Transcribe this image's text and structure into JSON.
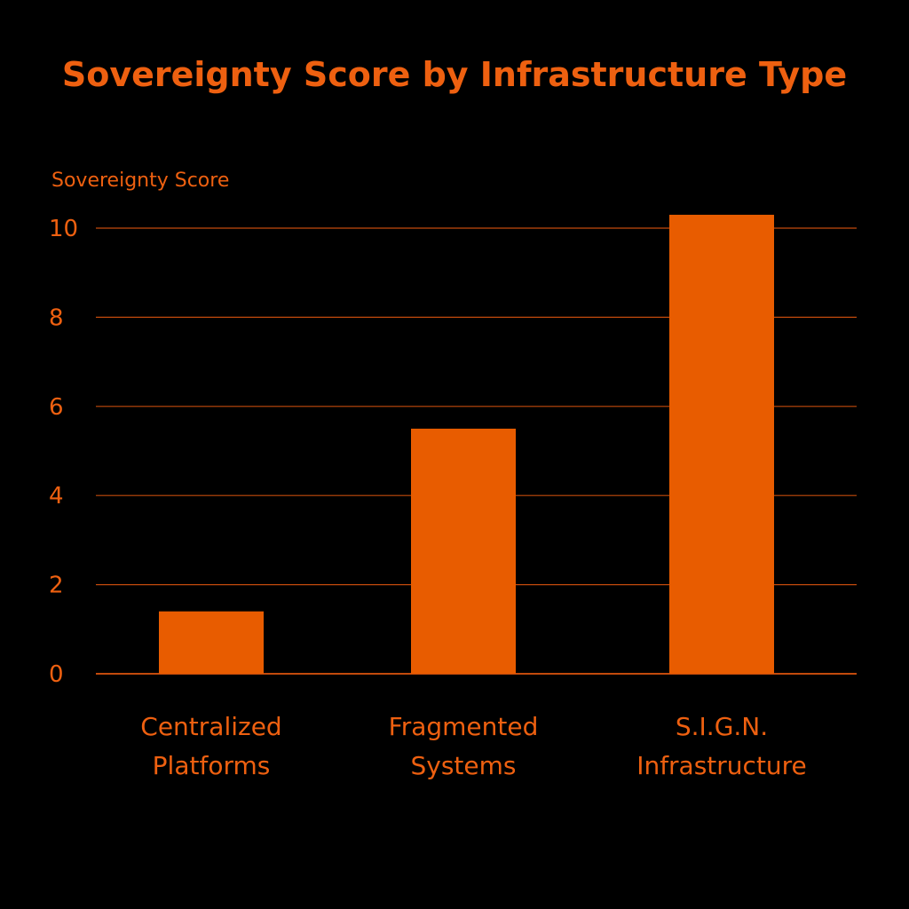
{
  "colors": {
    "background": "#000000",
    "accent": "#ee6010",
    "bar": "#e85c00",
    "grid": "#c24a0c"
  },
  "chart_data": {
    "type": "bar",
    "title": "Sovereignty Score by Infrastructure Type",
    "xlabel": "",
    "ylabel": "Sovereignty Score",
    "categories": [
      [
        "Centralized",
        "Platforms"
      ],
      [
        "Fragmented",
        "Systems"
      ],
      [
        "S.I.G.N.",
        "Infrastructure"
      ]
    ],
    "values": [
      1.4,
      5.5,
      10.3
    ],
    "yticks": [
      0,
      2,
      4,
      6,
      8,
      10
    ],
    "ylim": [
      0,
      10.3
    ],
    "grid": true,
    "legend": false
  }
}
